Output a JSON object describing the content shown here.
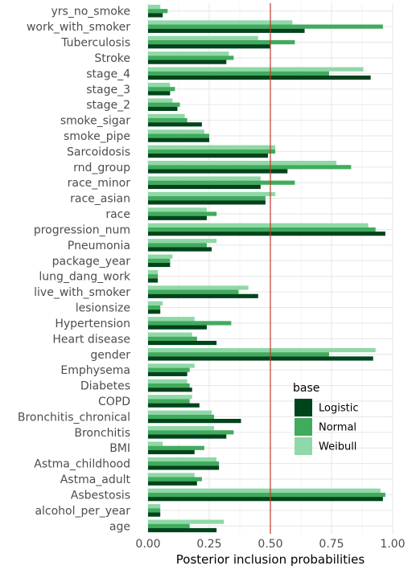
{
  "chart_data": {
    "type": "bar",
    "orientation": "horizontal",
    "xlabel": "Posterior inclusion probabilities",
    "ylabel": "",
    "xlim": [
      0,
      1
    ],
    "xticks": [
      0,
      0.25,
      0.5,
      0.75,
      1
    ],
    "xtick_labels": [
      "0.00",
      "0.25",
      "0.50",
      "0.75",
      "1.00"
    ],
    "reference_line": 0.5,
    "reference_line_color": "#c0392b",
    "grid": true,
    "legend": {
      "title": "base",
      "position": "right-inside-bottom"
    },
    "categories": [
      "yrs_no_smoke",
      "work_with_smoker",
      "Tuberculosis",
      "Stroke",
      "stage_4",
      "stage_3",
      "stage_2",
      "smoke_sigar",
      "smoke_pipe",
      "Sarcoidosis",
      "rnd_group",
      "race_minor",
      "race_asian",
      "race",
      "progression_num",
      "Pneumonia",
      "package_year",
      "lung_dang_work",
      "live_with_smoker",
      "lesionsize",
      "Hypertension",
      "Heart disease",
      "gender",
      "Emphysema",
      "Diabetes",
      "COPD",
      "Bronchitis_chronical",
      "Bronchitis",
      "BMI",
      "Astma_childhood",
      "Astma_adult",
      "Asbestosis",
      "alcohol_per_year",
      "age"
    ],
    "series": [
      {
        "name": "Logistic",
        "color": "#00441b",
        "values": [
          0.06,
          0.64,
          0.5,
          0.32,
          0.91,
          0.09,
          0.12,
          0.22,
          0.25,
          0.49,
          0.57,
          0.46,
          0.48,
          0.24,
          0.97,
          0.26,
          0.09,
          0.04,
          0.45,
          0.05,
          0.24,
          0.28,
          0.92,
          0.16,
          0.18,
          0.21,
          0.38,
          0.32,
          0.19,
          0.29,
          0.2,
          0.96,
          0.05,
          0.28
        ]
      },
      {
        "name": "Normal",
        "color": "#41ab5d",
        "values": [
          0.08,
          0.96,
          0.6,
          0.35,
          0.74,
          0.11,
          0.13,
          0.16,
          0.25,
          0.52,
          0.83,
          0.6,
          0.48,
          0.28,
          0.93,
          0.24,
          0.09,
          0.04,
          0.37,
          0.05,
          0.34,
          0.2,
          0.74,
          0.17,
          0.17,
          0.17,
          0.27,
          0.35,
          0.23,
          0.29,
          0.22,
          0.97,
          0.05,
          0.17
        ]
      },
      {
        "name": "Weibull",
        "color": "#8fd8a7",
        "values": [
          0.05,
          0.59,
          0.45,
          0.33,
          0.88,
          0.09,
          0.1,
          0.15,
          0.23,
          0.52,
          0.77,
          0.46,
          0.52,
          0.24,
          0.9,
          0.28,
          0.1,
          0.04,
          0.41,
          0.06,
          0.19,
          0.18,
          0.93,
          0.19,
          0.16,
          0.18,
          0.26,
          0.27,
          0.06,
          0.28,
          0.19,
          0.95,
          0.05,
          0.31
        ]
      }
    ]
  }
}
